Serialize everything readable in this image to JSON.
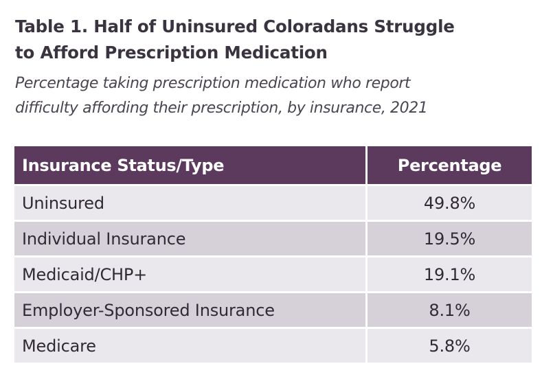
{
  "title_lines": [
    "Table 1. Half of Uninsured Coloradans Struggle",
    "to Afford Prescription Medication"
  ],
  "subtitle_lines": [
    "Percentage taking prescription medication who report",
    "difficulty affording their prescription, by insurance, 2021"
  ],
  "table": {
    "headers": [
      "Insurance Status/Type",
      "Percentage"
    ],
    "rows": [
      [
        "Uninsured",
        "49.8%"
      ],
      [
        "Individual Insurance",
        "19.5%"
      ],
      [
        "Medicaid/CHP+",
        "19.1%"
      ],
      [
        "Employer-Sponsored Insurance",
        "8.1%"
      ],
      [
        "Medicare",
        "5.8%"
      ]
    ]
  },
  "colors": {
    "header_background": "#5b3a5e",
    "row_light": "#ebe8ed",
    "row_dark": "#d6d0d9"
  }
}
